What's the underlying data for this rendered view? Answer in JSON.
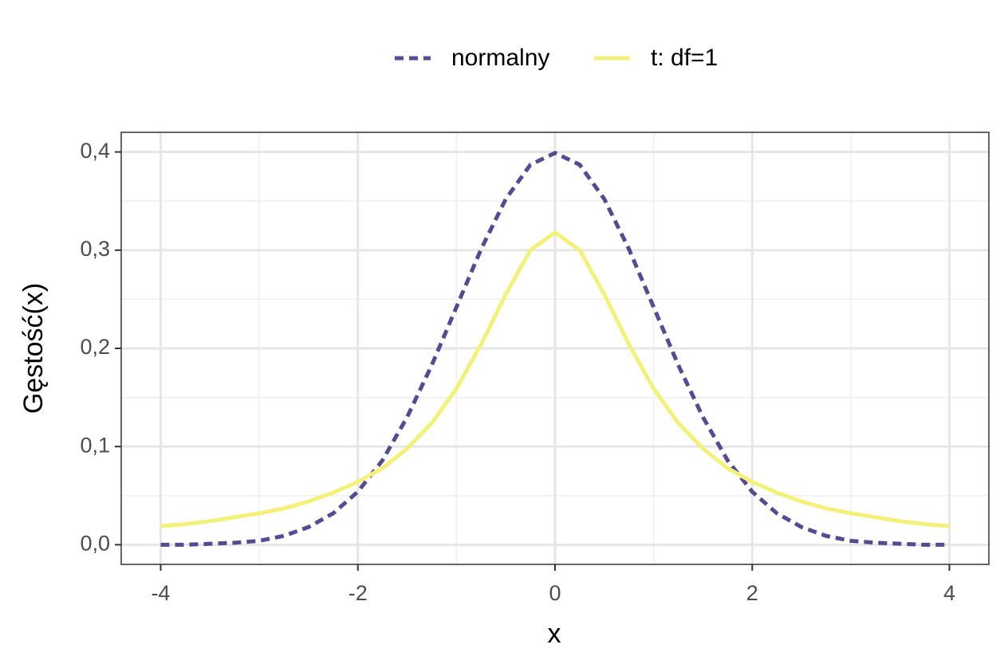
{
  "chart_data": {
    "type": "line",
    "x_label": "x",
    "y_label": "Gęstość(x)",
    "x": [
      -4,
      -3.75,
      -3.5,
      -3.25,
      -3,
      -2.75,
      -2.5,
      -2.25,
      -2,
      -1.75,
      -1.5,
      -1.25,
      -1,
      -0.75,
      -0.5,
      -0.25,
      0,
      0.25,
      0.5,
      0.75,
      1,
      1.25,
      1.5,
      1.75,
      2,
      2.25,
      2.5,
      2.75,
      3,
      3.25,
      3.5,
      3.75,
      4
    ],
    "series": [
      {
        "name": "normalny",
        "color": "#564b93",
        "dashed": true,
        "values": [
          0.0,
          0.0,
          0.001,
          0.002,
          0.004,
          0.009,
          0.018,
          0.032,
          0.054,
          0.086,
          0.13,
          0.183,
          0.242,
          0.301,
          0.352,
          0.387,
          0.399,
          0.387,
          0.352,
          0.301,
          0.242,
          0.183,
          0.13,
          0.086,
          0.054,
          0.032,
          0.018,
          0.009,
          0.004,
          0.002,
          0.001,
          0.0,
          0.0
        ]
      },
      {
        "name": "t: df=1",
        "color": "#f3f179",
        "dashed": false,
        "values": [
          0.019,
          0.021,
          0.024,
          0.028,
          0.032,
          0.037,
          0.044,
          0.053,
          0.064,
          0.078,
          0.098,
          0.124,
          0.159,
          0.204,
          0.255,
          0.3,
          0.318,
          0.3,
          0.255,
          0.204,
          0.159,
          0.124,
          0.098,
          0.078,
          0.064,
          0.053,
          0.044,
          0.037,
          0.032,
          0.028,
          0.024,
          0.021,
          0.019
        ]
      }
    ],
    "xlim": [
      -4.4,
      4.4
    ],
    "ylim": [
      -0.02,
      0.42
    ],
    "xticks": [
      -4,
      -2,
      0,
      2,
      4
    ],
    "yticks": [
      {
        "value": 0,
        "label": "0,0"
      },
      {
        "value": 0.1,
        "label": "0,1"
      },
      {
        "value": 0.2,
        "label": "0,2"
      },
      {
        "value": 0.3,
        "label": "0,3"
      },
      {
        "value": 0.4,
        "label": "0,4"
      }
    ],
    "grid": true,
    "legend_position": "top"
  }
}
